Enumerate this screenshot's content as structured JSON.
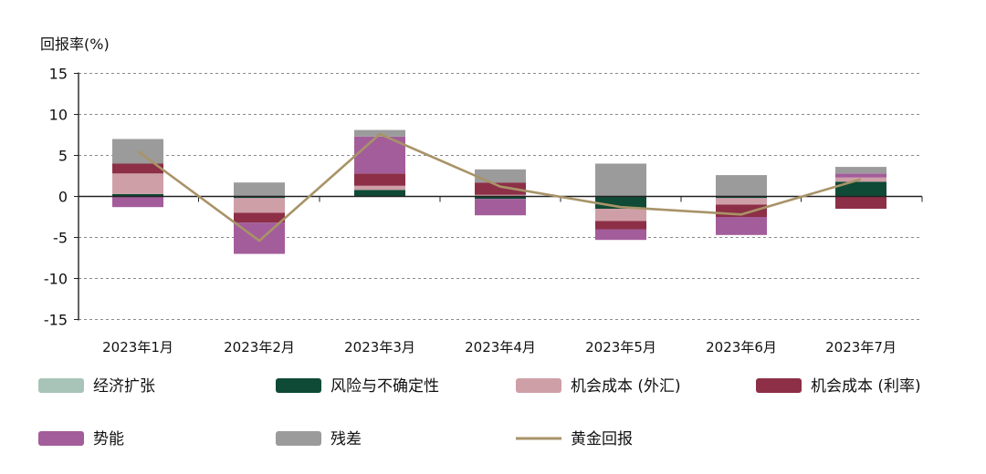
{
  "chart_data": {
    "type": "bar",
    "stacked": true,
    "ylabel": "回报率(%)",
    "ylim": [
      -15,
      15
    ],
    "yticks": [
      15,
      10,
      5,
      0,
      -5,
      -10,
      -15
    ],
    "grid": true,
    "legend_position": "bottom",
    "categories": [
      "2023年1月",
      "2023年2月",
      "2023年3月",
      "2023年4月",
      "2023年5月",
      "2023年6月",
      "2023年7月"
    ],
    "series": [
      {
        "name": "经济扩张",
        "color": "#a8c4b8",
        "values": [
          0,
          0,
          0,
          0,
          0,
          0,
          0
        ]
      },
      {
        "name": "风险与不确定性",
        "color": "#0e4a36",
        "values": [
          0.3,
          -0.2,
          0.8,
          -0.3,
          -1.5,
          -0.2,
          1.8
        ]
      },
      {
        "name": "机会成本 (外汇)",
        "color": "#cf9fa8",
        "values": [
          2.5,
          -1.8,
          0.5,
          0.2,
          -1.5,
          -0.8,
          0.5
        ]
      },
      {
        "name": "机会成本 (利率)",
        "color": "#8c2f47",
        "values": [
          1.2,
          -1.2,
          1.5,
          1.5,
          -1.0,
          -1.5,
          -1.5
        ]
      },
      {
        "name": "势能",
        "color": "#a35d9a",
        "values": [
          -1.3,
          -3.8,
          4.5,
          -2.0,
          -1.3,
          -2.2,
          0.5
        ]
      },
      {
        "name": "残差",
        "color": "#9b9b9b",
        "values": [
          3.0,
          1.7,
          0.8,
          1.6,
          4.0,
          2.6,
          0.8
        ]
      }
    ],
    "line": {
      "name": "黄金回报",
      "color": "#a89368",
      "values": [
        5.5,
        -5.4,
        7.6,
        1.2,
        -1.3,
        -2.2,
        2.1
      ]
    }
  }
}
